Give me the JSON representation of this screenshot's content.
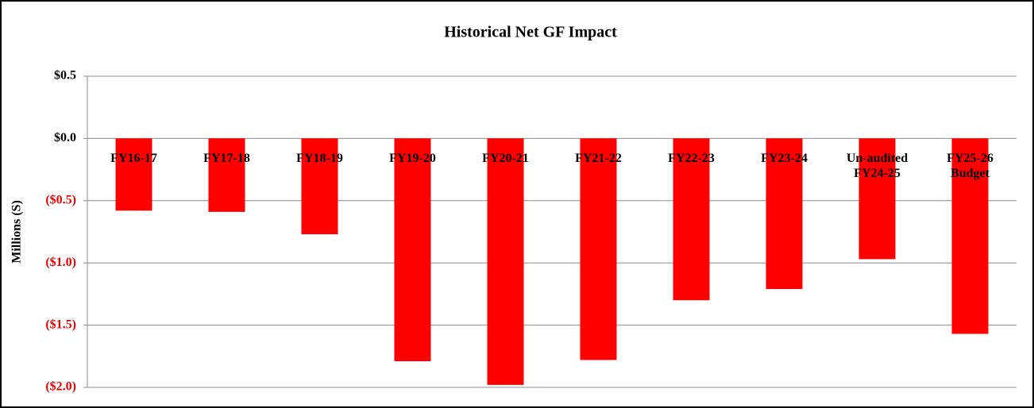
{
  "chart_data": {
    "type": "bar",
    "title": "Historical Net GF Impact",
    "y_label": "Millions (S)",
    "categories": [
      "FY16-17",
      "FY17-18",
      "FY18-19",
      "FY19-20",
      "FY20-21",
      "FY21-22",
      "FY22-23",
      "FY23-24",
      "Un-audited\nFY24-25",
      "FY25-26\nBudget"
    ],
    "values": [
      -0.58,
      -0.59,
      -0.77,
      -1.79,
      -1.98,
      -1.78,
      -1.3,
      -1.21,
      -0.97,
      -1.57
    ],
    "color": "#ff0000",
    "negative_tick_color": "#e60000",
    "ylim": [
      -2,
      0.5
    ],
    "yticks": [
      {
        "value": -2,
        "label": "($2.0)"
      },
      {
        "value": -1.5,
        "label": "($1.5)"
      },
      {
        "value": -1,
        "label": "($1.0)"
      },
      {
        "value": -0.5,
        "label": "($0.5)"
      },
      {
        "value": 0,
        "label": "$0.0"
      },
      {
        "value": 0.5,
        "label": "$0.5"
      }
    ],
    "grid": true
  }
}
